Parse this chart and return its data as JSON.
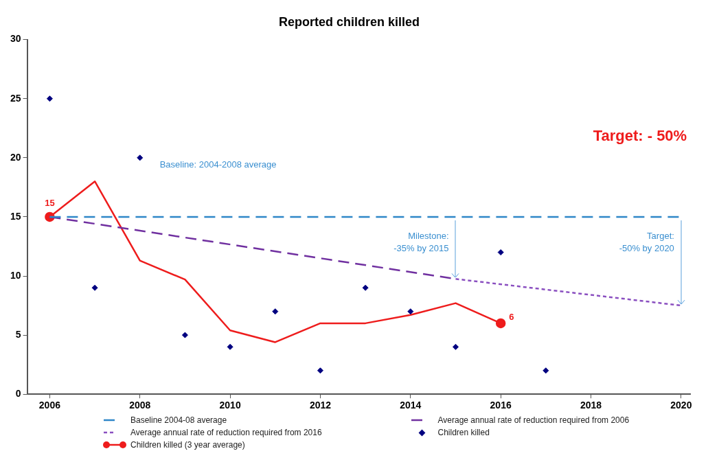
{
  "chart_data": {
    "type": "line",
    "title": "Reported children killed",
    "xlim": [
      2005.5,
      2020.2
    ],
    "xticks": [
      2006,
      2008,
      2010,
      2012,
      2014,
      2016,
      2018,
      2020
    ],
    "ylim": [
      0,
      30
    ],
    "yticks": [
      0,
      5,
      10,
      15,
      20,
      25,
      30
    ],
    "grid": false,
    "legend": "bottom",
    "series": [
      {
        "name": "Baseline 2004-08 average",
        "color": "#2e86c8",
        "line_style": "dashed",
        "x": [
          2006,
          2020
        ],
        "values": [
          15,
          15
        ]
      },
      {
        "name": "Average annual rate of reduction required from 2006",
        "color": "#7030a0",
        "line_style": "dashed",
        "x": [
          2006,
          2015
        ],
        "values": [
          15,
          9.75
        ]
      },
      {
        "name": "Average annual rate of reduction required from 2016",
        "color": "#8a4fc0",
        "line_style": "dotted",
        "x": [
          2015,
          2020
        ],
        "values": [
          9.75,
          7.5
        ]
      },
      {
        "name": "Children killed",
        "type": "scatter",
        "color": "#000080",
        "marker": "diamond",
        "x": [
          2006,
          2007,
          2008,
          2009,
          2010,
          2011,
          2012,
          2013,
          2014,
          2015,
          2016,
          2017
        ],
        "values": [
          25,
          9,
          20,
          5,
          4,
          7,
          2,
          9,
          7,
          4,
          12,
          2
        ]
      },
      {
        "name": "Children killed (3 year average)",
        "color": "#ee1c1c",
        "line_style": "solid",
        "x": [
          2006,
          2007,
          2008,
          2009,
          2010,
          2011,
          2012,
          2013,
          2014,
          2015,
          2016
        ],
        "values": [
          15,
          18,
          11.3,
          9.7,
          5.4,
          4.4,
          6,
          6,
          6.7,
          7.7,
          6
        ],
        "value_labels": [
          "15",
          null,
          null,
          null,
          null,
          null,
          null,
          null,
          null,
          null,
          "6"
        ]
      }
    ],
    "annotations": [
      "Baseline: 2004-2008 average",
      "Target: - 50%",
      "Milestone:\n-35% by 2015",
      "Target:\n-50% by 2020"
    ]
  }
}
